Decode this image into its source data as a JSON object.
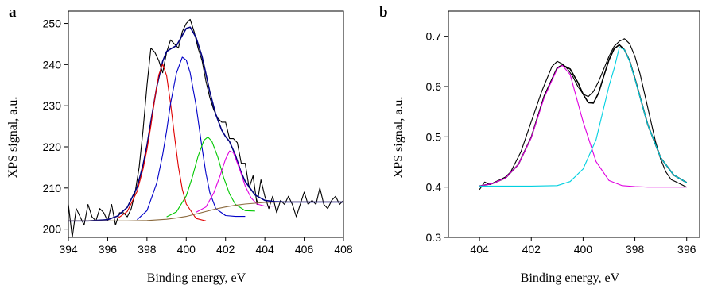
{
  "chart_data": [
    {
      "panel_label": "a",
      "type": "line",
      "xlabel": "Binding energy, eV",
      "ylabel": "XPS signal, a.u.",
      "xlim": [
        394,
        408
      ],
      "ylim": [
        198,
        253
      ],
      "xticks": [
        "394",
        "396",
        "398",
        "400",
        "402",
        "404",
        "406",
        "408"
      ],
      "yticks": [
        "200",
        "210",
        "220",
        "230",
        "240",
        "250"
      ],
      "grid": false,
      "series": [
        {
          "role": "measured",
          "color": "#000000",
          "x": [
            394.0,
            394.2,
            394.4,
            394.6,
            394.8,
            395.0,
            395.2,
            395.4,
            395.6,
            395.8,
            396.0,
            396.2,
            396.4,
            396.6,
            396.8,
            397.0,
            397.2,
            397.4,
            397.6,
            397.8,
            398.0,
            398.2,
            398.4,
            398.6,
            398.8,
            399.0,
            399.2,
            399.4,
            399.6,
            399.8,
            400.0,
            400.2,
            400.4,
            400.6,
            400.8,
            401.0,
            401.2,
            401.4,
            401.6,
            401.8,
            402.0,
            402.2,
            402.4,
            402.6,
            402.8,
            403.0,
            403.2,
            403.4,
            403.6,
            403.8,
            404.0,
            404.2,
            404.4,
            404.6,
            404.8,
            405.0,
            405.2,
            405.4,
            405.6,
            405.8,
            406.0,
            406.2,
            406.4,
            406.6,
            406.8,
            407.0,
            407.2,
            407.4,
            407.6,
            407.8,
            408.0
          ],
          "y": [
            206,
            198,
            205,
            203,
            201,
            206,
            203,
            202,
            205,
            204,
            202,
            206,
            201,
            204,
            204,
            203,
            205,
            209,
            215,
            224,
            235,
            244,
            243,
            241,
            238,
            243,
            246,
            245,
            244,
            248,
            250,
            251,
            248,
            244,
            241,
            236,
            232,
            229,
            227,
            226,
            226,
            222,
            222,
            221,
            216,
            216,
            210,
            213,
            206,
            212,
            208,
            205,
            208,
            204,
            207,
            206,
            208,
            206,
            203,
            206,
            209,
            206,
            207,
            206,
            210,
            206,
            205,
            207,
            208,
            206,
            207
          ]
        },
        {
          "role": "envelope fit",
          "color": "#000080",
          "x": [
            394.0,
            395.0,
            396.0,
            396.5,
            397.0,
            397.5,
            397.8,
            398.0,
            398.2,
            398.5,
            398.8,
            399.0,
            399.2,
            399.5,
            399.8,
            400.0,
            400.2,
            400.5,
            400.8,
            401.0,
            401.2,
            401.5,
            401.8,
            402.0,
            402.2,
            402.5,
            402.8,
            403.0,
            403.5,
            404.0,
            404.5,
            405.0,
            406.0,
            407.0,
            408.0
          ],
          "y": [
            202,
            202,
            202.3,
            203.2,
            205.3,
            210.2,
            215.6,
            220.4,
            226.2,
            234.6,
            240.8,
            243.2,
            243.8,
            244.6,
            247.1,
            248.8,
            249.1,
            246.6,
            242.0,
            237.8,
            233.4,
            227.9,
            224.1,
            222.5,
            221.3,
            218.0,
            213.7,
            211.6,
            208.3,
            207.0,
            206.7,
            206.6,
            206.6,
            206.6,
            206.6
          ]
        },
        {
          "role": "component 1",
          "color": "#e00000",
          "x": [
            396.5,
            397.0,
            397.5,
            397.8,
            398.0,
            398.2,
            398.4,
            398.6,
            398.8,
            399.0,
            399.2,
            399.4,
            399.6,
            399.8,
            400.0,
            400.5,
            401.0
          ],
          "y": [
            202.6,
            204.3,
            209.2,
            214.6,
            219.4,
            225.1,
            231.8,
            237.5,
            240.1,
            237.3,
            230.6,
            222.6,
            215.2,
            209.7,
            206.1,
            202.6,
            202.0
          ]
        },
        {
          "role": "component 2",
          "color": "#0000c8",
          "x": [
            397.5,
            398.0,
            398.5,
            398.8,
            399.0,
            399.2,
            399.5,
            399.8,
            400.0,
            400.2,
            400.5,
            400.8,
            401.0,
            401.2,
            401.5,
            402.0,
            402.5,
            403.0
          ],
          "y": [
            202.3,
            204.5,
            211.2,
            218.1,
            223.9,
            230.5,
            237.9,
            241.8,
            241.1,
            238.0,
            230.1,
            219.8,
            213.6,
            208.9,
            205.0,
            203.3,
            203.1,
            203.1
          ]
        },
        {
          "role": "component 3",
          "color": "#00c800",
          "x": [
            399.0,
            399.5,
            400.0,
            400.3,
            400.6,
            400.9,
            401.1,
            401.3,
            401.6,
            401.9,
            402.2,
            402.5,
            403.0,
            403.5
          ],
          "y": [
            203.0,
            204.2,
            208.1,
            212.5,
            217.7,
            221.6,
            222.4,
            221.4,
            217.6,
            212.6,
            208.6,
            206.0,
            204.5,
            204.4
          ]
        },
        {
          "role": "component 4",
          "color": "#e000e0",
          "x": [
            400.5,
            401.0,
            401.4,
            401.7,
            402.0,
            402.2,
            402.4,
            402.7,
            403.0,
            403.3,
            403.6,
            404.0,
            404.5
          ],
          "y": [
            204.1,
            205.4,
            208.8,
            212.7,
            217.0,
            219.0,
            218.6,
            214.8,
            210.5,
            207.6,
            206.1,
            205.6,
            205.6
          ]
        },
        {
          "role": "background",
          "color": "#8b6a3e",
          "x": [
            394.0,
            396.0,
            397.0,
            398.0,
            399.0,
            399.5,
            400.0,
            400.5,
            401.0,
            401.5,
            402.0,
            402.5,
            403.0,
            403.5,
            404.0,
            405.0,
            406.0,
            407.0,
            408.0
          ],
          "y": [
            202.0,
            202.0,
            202.0,
            202.1,
            202.4,
            202.7,
            203.1,
            203.7,
            204.3,
            204.9,
            205.4,
            205.8,
            206.1,
            206.3,
            206.5,
            206.6,
            206.6,
            206.6,
            206.6
          ]
        }
      ]
    },
    {
      "panel_label": "b",
      "type": "line",
      "xlabel": "Binding energy, eV",
      "ylabel": "XPS signal, a.u.",
      "x_reversed": true,
      "xlim": [
        405.2,
        395.5
      ],
      "ylim": [
        0.3,
        0.75
      ],
      "xticks": [
        "404",
        "402",
        "400",
        "398",
        "396"
      ],
      "yticks": [
        "0.3",
        "0.4",
        "0.5",
        "0.6",
        "0.7"
      ],
      "grid": false,
      "series": [
        {
          "role": "measured",
          "color": "#000000",
          "x": [
            404.0,
            403.8,
            403.6,
            403.4,
            403.2,
            403.0,
            402.8,
            402.6,
            402.4,
            402.2,
            402.0,
            401.8,
            401.6,
            401.4,
            401.2,
            401.0,
            400.8,
            400.6,
            400.4,
            400.2,
            400.0,
            399.8,
            399.6,
            399.4,
            399.2,
            399.0,
            398.8,
            398.6,
            398.4,
            398.2,
            398.0,
            397.8,
            397.6,
            397.4,
            397.2,
            397.0,
            396.8,
            396.6,
            396.4,
            396.2,
            396.0
          ],
          "y": [
            0.395,
            0.41,
            0.405,
            0.41,
            0.415,
            0.42,
            0.43,
            0.45,
            0.47,
            0.5,
            0.53,
            0.56,
            0.59,
            0.615,
            0.64,
            0.65,
            0.645,
            0.635,
            0.62,
            0.6,
            0.585,
            0.58,
            0.59,
            0.61,
            0.635,
            0.66,
            0.68,
            0.69,
            0.695,
            0.685,
            0.66,
            0.625,
            0.58,
            0.535,
            0.49,
            0.455,
            0.43,
            0.415,
            0.41,
            0.405,
            0.4
          ]
        },
        {
          "role": "envelope fit",
          "color": "#000000",
          "x": [
            404.0,
            403.5,
            403.0,
            402.5,
            402.0,
            401.5,
            401.0,
            400.8,
            400.5,
            400.2,
            400.0,
            399.8,
            399.6,
            399.4,
            399.2,
            399.0,
            398.8,
            398.6,
            398.4,
            398.2,
            398.0,
            397.5,
            397.0,
            396.5,
            396.0
          ],
          "y": [
            0.402,
            0.407,
            0.418,
            0.445,
            0.499,
            0.581,
            0.637,
            0.643,
            0.635,
            0.608,
            0.585,
            0.568,
            0.567,
            0.587,
            0.621,
            0.653,
            0.675,
            0.683,
            0.673,
            0.651,
            0.616,
            0.524,
            0.458,
            0.424,
            0.409
          ]
        },
        {
          "role": "component 1",
          "color": "#e000e0",
          "x": [
            404.0,
            403.5,
            403.0,
            402.5,
            402.0,
            401.5,
            401.0,
            400.8,
            400.5,
            400.0,
            399.5,
            399.0,
            398.5,
            398.0,
            397.5,
            397.0,
            396.0
          ],
          "y": [
            0.402,
            0.407,
            0.418,
            0.445,
            0.498,
            0.578,
            0.635,
            0.642,
            0.624,
            0.53,
            0.451,
            0.413,
            0.403,
            0.401,
            0.4,
            0.4,
            0.4
          ]
        },
        {
          "role": "component 2",
          "color": "#00d0e0",
          "x": [
            404.0,
            402.0,
            401.0,
            400.5,
            400.0,
            399.5,
            399.0,
            398.8,
            398.6,
            398.4,
            398.2,
            398.0,
            397.5,
            397.0,
            396.5,
            396.0
          ],
          "y": [
            0.402,
            0.402,
            0.403,
            0.411,
            0.436,
            0.494,
            0.601,
            0.636,
            0.678,
            0.673,
            0.65,
            0.615,
            0.524,
            0.458,
            0.424,
            0.409
          ]
        }
      ]
    }
  ]
}
